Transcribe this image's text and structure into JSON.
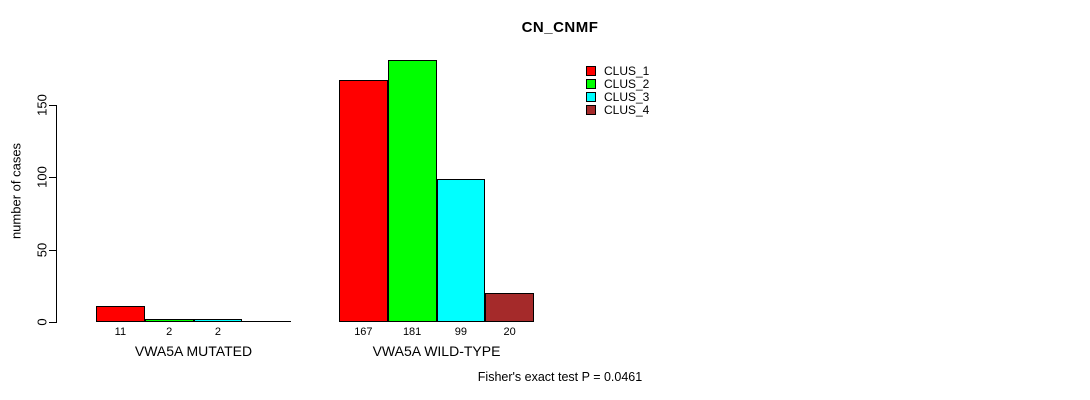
{
  "chart_data": {
    "type": "bar",
    "title": "CN_CNMF",
    "ylabel": "number of cases",
    "xlabel": "",
    "yticks": [
      0,
      50,
      100,
      150
    ],
    "ylim": [
      0,
      185
    ],
    "grid": false,
    "legend_position": "top-right",
    "categories": [
      "VWA5A MUTATED",
      "VWA5A WILD-TYPE"
    ],
    "series": [
      {
        "name": "CLUS_1",
        "color": "#ff0000",
        "values": [
          11,
          167
        ]
      },
      {
        "name": "CLUS_2",
        "color": "#00ff00",
        "values": [
          2,
          181
        ]
      },
      {
        "name": "CLUS_3",
        "color": "#00ffff",
        "values": [
          2,
          99
        ]
      },
      {
        "name": "CLUS_4",
        "color": "#a52a2a",
        "values": [
          0,
          20
        ]
      }
    ],
    "bar_value_labels": [
      [
        "11",
        "2",
        "2",
        ""
      ],
      [
        "167",
        "181",
        "99",
        "20"
      ]
    ],
    "annotation": "Fisher's exact test P = 0.0461"
  },
  "colors": {
    "background": "#ffffff",
    "axis": "#000000",
    "bar_border": "#000000",
    "text": "#000000"
  }
}
